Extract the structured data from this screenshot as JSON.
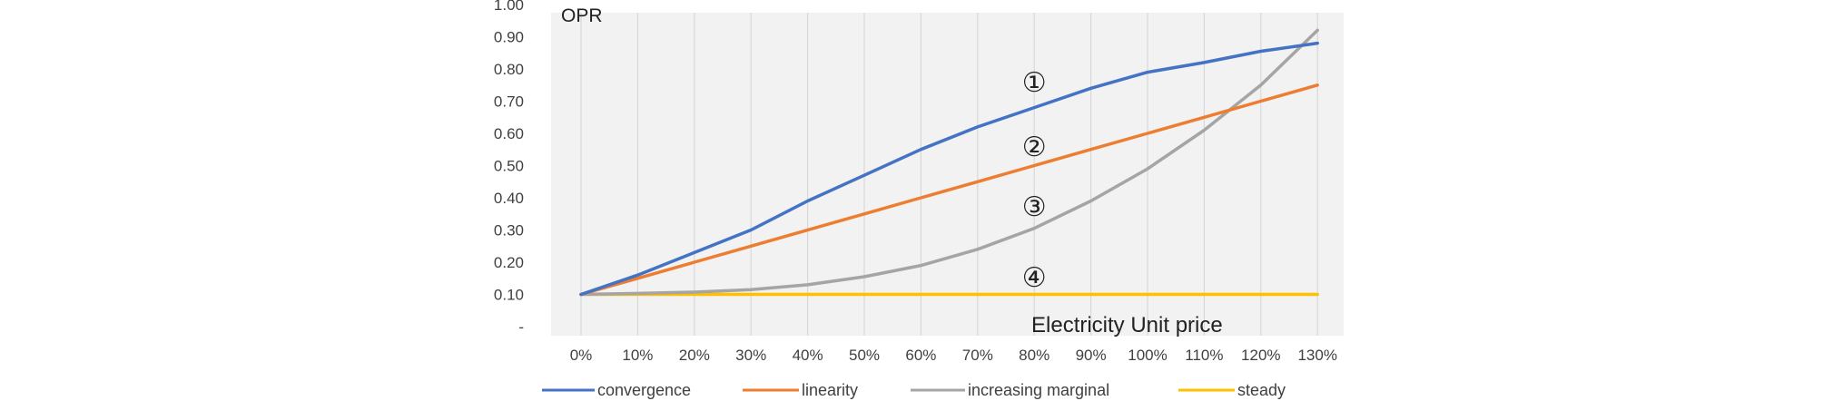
{
  "chart_data": {
    "type": "line",
    "title": "",
    "ylabel": "OPR",
    "xlabel": "Electricity Unit price",
    "categories": [
      "0%",
      "10%",
      "20%",
      "30%",
      "40%",
      "50%",
      "60%",
      "70%",
      "80%",
      "90%",
      "100%",
      "110%",
      "120%",
      "130%"
    ],
    "ylim": [
      0,
      1.0
    ],
    "yticks": [
      "-",
      "0.10",
      "0.20",
      "0.30",
      "0.40",
      "0.50",
      "0.60",
      "0.70",
      "0.80",
      "0.90",
      "1.00"
    ],
    "grid": "vertical",
    "legend_position": "bottom",
    "series": [
      {
        "name": "convergence",
        "color": "#4472C4",
        "values": [
          0.1,
          0.16,
          0.23,
          0.3,
          0.39,
          0.47,
          0.55,
          0.62,
          0.68,
          0.74,
          0.79,
          0.82,
          0.855,
          0.88
        ]
      },
      {
        "name": "linearity",
        "color": "#ED7D31",
        "values": [
          0.1,
          0.15,
          0.2,
          0.25,
          0.3,
          0.35,
          0.4,
          0.45,
          0.5,
          0.55,
          0.6,
          0.65,
          0.7,
          0.75
        ]
      },
      {
        "name": "increasing marginal",
        "color": "#A5A5A5",
        "values": [
          0.1,
          0.103,
          0.107,
          0.115,
          0.13,
          0.155,
          0.19,
          0.24,
          0.305,
          0.39,
          0.49,
          0.61,
          0.75,
          0.92
        ]
      },
      {
        "name": "steady",
        "color": "#FFC000",
        "values": [
          0.1,
          0.1,
          0.1,
          0.1,
          0.1,
          0.1,
          0.1,
          0.1,
          0.1,
          0.1,
          0.1,
          0.1,
          0.1,
          0.1
        ]
      }
    ],
    "annotations": [
      {
        "text": "①",
        "x": "80%",
        "y": 0.76
      },
      {
        "text": "②",
        "x": "80%",
        "y": 0.56
      },
      {
        "text": "③",
        "x": "80%",
        "y": 0.375
      },
      {
        "text": "④",
        "x": "80%",
        "y": 0.155
      }
    ]
  }
}
